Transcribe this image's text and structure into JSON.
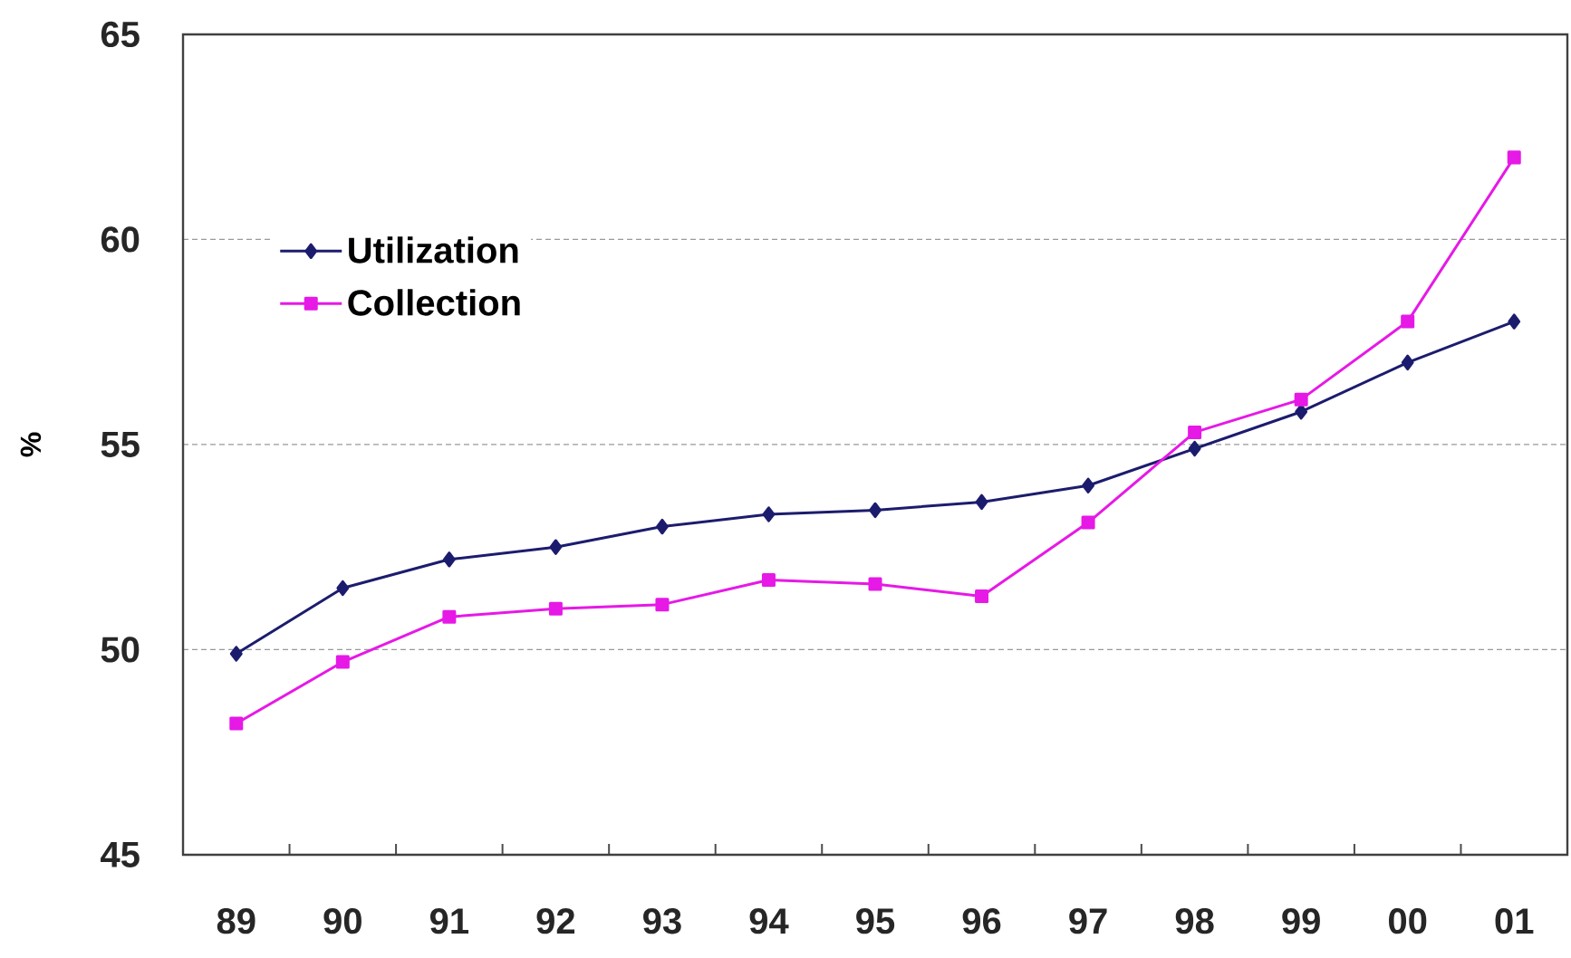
{
  "chart_data": {
    "type": "line",
    "ylabel": "%",
    "categories": [
      "89",
      "90",
      "91",
      "92",
      "93",
      "94",
      "95",
      "96",
      "97",
      "98",
      "99",
      "00",
      "01"
    ],
    "series": [
      {
        "name": "Utilization",
        "color": "#1c1c6e",
        "marker": "diamond",
        "values": [
          49.9,
          51.5,
          52.2,
          52.5,
          53.0,
          53.3,
          53.4,
          53.6,
          54.0,
          54.9,
          55.8,
          57.0,
          58.0
        ]
      },
      {
        "name": "Collection",
        "color": "#e619e6",
        "marker": "square",
        "values": [
          48.2,
          49.7,
          50.8,
          51.0,
          51.1,
          51.7,
          51.6,
          51.3,
          53.1,
          55.3,
          56.1,
          58.0,
          62.0
        ]
      }
    ],
    "ylim": [
      45,
      65
    ],
    "yticks": [
      45,
      50,
      55,
      60,
      65
    ],
    "grid": "y",
    "legend": "top left",
    "line_style": "solid"
  }
}
